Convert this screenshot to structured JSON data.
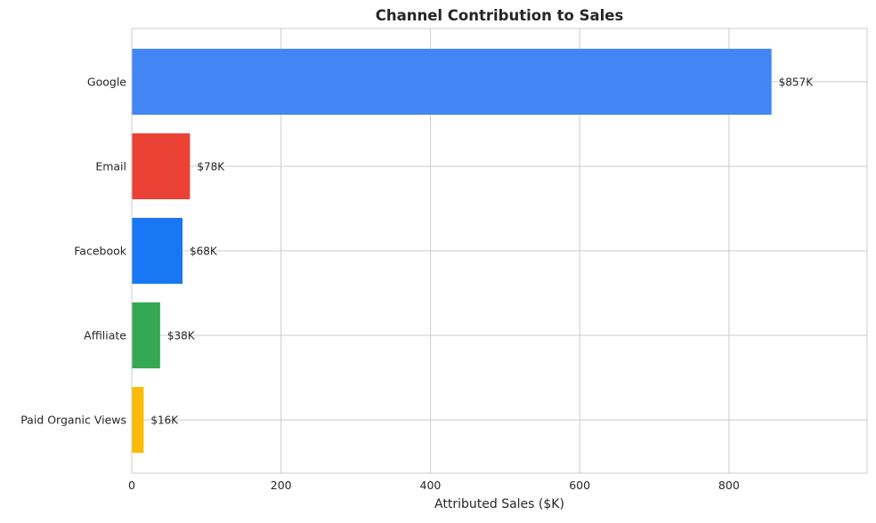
{
  "chart_data": {
    "type": "bar",
    "orientation": "horizontal",
    "title": "Channel Contribution to Sales",
    "xlabel": "Attributed Sales ($K)",
    "ylabel": "",
    "categories": [
      "Google",
      "Email",
      "Facebook",
      "Affiliate",
      "Paid Organic Views"
    ],
    "values": [
      857,
      78,
      68,
      38,
      16
    ],
    "data_labels": [
      "$857K",
      "$78K",
      "$68K",
      "$38K",
      "$16K"
    ],
    "colors": [
      "#4285F4",
      "#EA4335",
      "#1877F2",
      "#34A853",
      "#FBBC05"
    ],
    "xlim": [
      0,
      985
    ],
    "xticks": [
      0,
      200,
      400,
      600,
      800
    ],
    "xtick_labels": [
      "0",
      "200",
      "400",
      "600",
      "800"
    ],
    "grid": true,
    "legend": "none"
  }
}
